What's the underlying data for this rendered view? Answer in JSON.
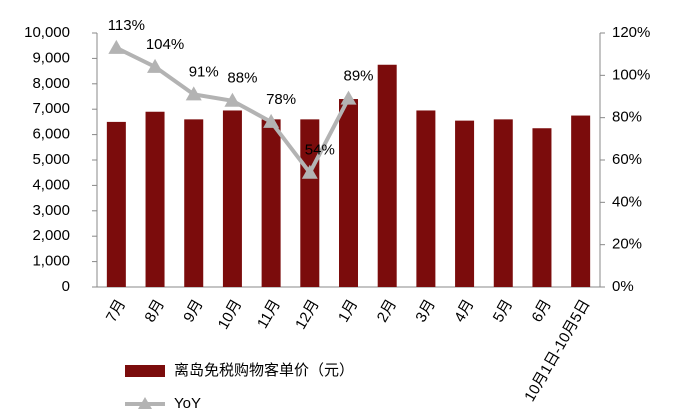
{
  "chart_data": {
    "type": "bar",
    "categories": [
      "7月",
      "8月",
      "9月",
      "10月",
      "11月",
      "12月",
      "1月",
      "2月",
      "3月",
      "4月",
      "5月",
      "6月",
      "10月1日-10月5日"
    ],
    "series": [
      {
        "name": "离岛免税购物客单价（元）",
        "color": "#7b0c0c",
        "type": "bar",
        "values": [
          6500,
          6900,
          6600,
          6950,
          6600,
          6600,
          7400,
          8750,
          6950,
          6550,
          6600,
          6250,
          6750
        ]
      },
      {
        "name": "YoY",
        "color": "#b3b3b3",
        "type": "line",
        "axis": "y2",
        "values": [
          113,
          104,
          91,
          88,
          78,
          54,
          89,
          null,
          null,
          null,
          null,
          null,
          null
        ],
        "value_labels": [
          "113%",
          "104%",
          "91%",
          "88%",
          "78%",
          "54%",
          "89%",
          null,
          null,
          null,
          null,
          null,
          null
        ]
      }
    ],
    "ylim": [
      0,
      10000
    ],
    "yticks": [
      0,
      {
        "value": 1000,
        "label": "1,000"
      },
      {
        "value": 2000,
        "label": "2,000"
      },
      {
        "value": 3000,
        "label": "3,000"
      },
      {
        "value": 4000,
        "label": "4,000"
      },
      {
        "value": 5000,
        "label": "5,000"
      },
      {
        "value": 6000,
        "label": "6,000"
      },
      {
        "value": 7000,
        "label": "7,000"
      },
      {
        "value": 8000,
        "label": "8,000"
      },
      {
        "value": 9000,
        "label": "9,000"
      },
      {
        "value": 10000,
        "label": "10,000"
      }
    ],
    "y2lim": [
      0,
      120
    ],
    "y2ticks": [
      {
        "value": 0,
        "label": "0%"
      },
      {
        "value": 20,
        "label": "20%"
      },
      {
        "value": 40,
        "label": "40%"
      },
      {
        "value": 60,
        "label": "60%"
      },
      {
        "value": 80,
        "label": "80%"
      },
      {
        "value": 100,
        "label": "100%"
      },
      {
        "value": 120,
        "label": "120%"
      }
    ],
    "grid": false
  }
}
